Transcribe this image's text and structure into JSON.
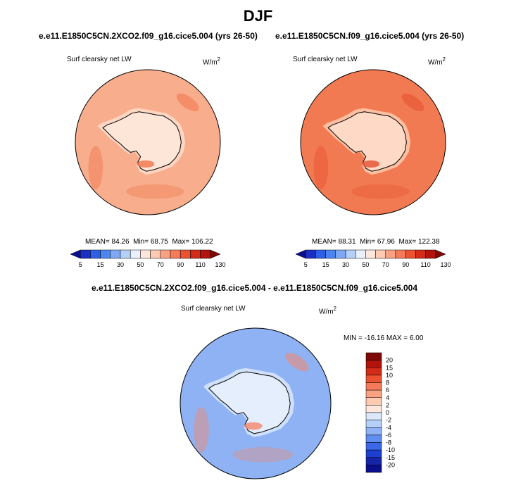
{
  "page": {
    "title": "DJF"
  },
  "palette_full": [
    "#0a0f8c",
    "#1c2fc4",
    "#2f5fe6",
    "#4d85f0",
    "#7ea8f4",
    "#b4cff8",
    "#e8f1fd",
    "#fde7dc",
    "#fcc9b1",
    "#f9a283",
    "#f47a59",
    "#ea5232",
    "#d22c18",
    "#b2140b",
    "#7e0805"
  ],
  "chart_data": [
    {
      "type": "heatmap",
      "projection": "south-polar-stereographic",
      "case": "e.e11.E1850C5CN.2XCO2.f09_g16.cice5.004 (yrs 26-50)",
      "variable": "Surf clearsky net LW",
      "units_base": "W/m",
      "units_exp": "2",
      "stats": {
        "mean_label": "MEAN=",
        "mean": "84.26",
        "min_label": "Min=",
        "min": "68.75",
        "max_label": "Max=",
        "max": "106.22"
      },
      "colorbar_ticks": [
        "5",
        "15",
        "30",
        "50",
        "70",
        "90",
        "110",
        "130"
      ],
      "ocean_color": "#f8ae8c",
      "ice_color": "#fcd6c2",
      "interior_color": "#fde5d8",
      "hot_color": "#f0734b"
    },
    {
      "type": "heatmap",
      "projection": "south-polar-stereographic",
      "case": "e.e11.E1850C5CN.f09_g16.cice5.004 (yrs 26-50)",
      "variable": "Surf clearsky net LW",
      "units_base": "W/m",
      "units_exp": "2",
      "stats": {
        "mean_label": "MEAN=",
        "mean": "88.31",
        "min_label": "Min=",
        "min": "67.96",
        "max_label": "Max=",
        "max": "122.38"
      },
      "colorbar_ticks": [
        "5",
        "15",
        "30",
        "50",
        "70",
        "90",
        "110",
        "130"
      ],
      "ocean_color": "#f27a52",
      "ice_color": "#fbbfa2",
      "interior_color": "#fdd9c6",
      "hot_color": "#e6502e"
    },
    {
      "type": "heatmap",
      "projection": "south-polar-stereographic",
      "case": "e.e11.E1850C5CN.2XCO2.f09_g16.cice5.004 - e.e11.E1850C5CN.f09_g16.cice5.004",
      "variable": "Surf clearsky net LW",
      "units_base": "W/m",
      "units_exp": "2",
      "stats_text": "MIN = -16.16 MAX =   6.00",
      "colorbar_ticks": [
        "20",
        "15",
        "10",
        "8",
        "6",
        "4",
        "2",
        "0",
        "-2",
        "-4",
        "-6",
        "-8",
        "-10",
        "-15",
        "-20"
      ],
      "colorbar_colors": [
        "#7e0805",
        "#b2140b",
        "#d22c18",
        "#ea5232",
        "#f47a59",
        "#f9a283",
        "#fcc9b1",
        "#fde7dc",
        "#dbe8fb",
        "#b4cff8",
        "#8eb2f4",
        "#5f8ef0",
        "#3a68e8",
        "#1c3fcf",
        "#1525a8",
        "#0a0f8c"
      ],
      "ocean_color": "#8eb2f4",
      "ice_color": "#cfe0fa",
      "interior_color": "#e4eefc",
      "hot_color": "#f4866a"
    }
  ]
}
